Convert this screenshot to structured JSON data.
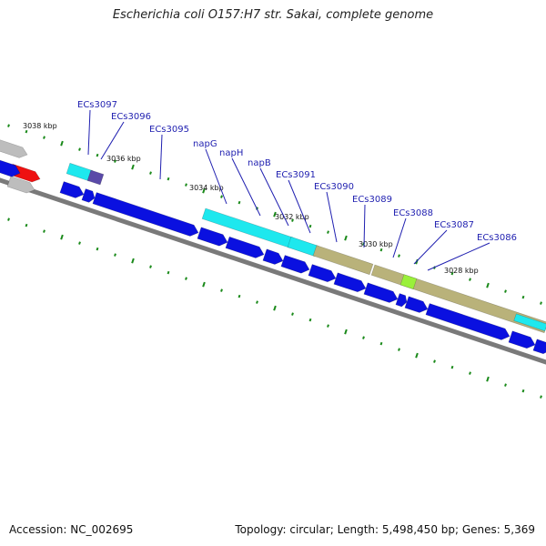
{
  "title": "Escherichia coli O157:H7 str. Sakai, complete genome",
  "footer": {
    "accession": "Accession: NC_002695",
    "summary": "Topology: circular; Length: 5,498,450 bp; Genes: 5,369"
  },
  "colors": {
    "cds": "#0a10e0",
    "highlight": "#1ee8ee",
    "operon": "#b9b27a",
    "rna": "#ee1111",
    "other": "#bdbdbd",
    "backbone": "#7a7a7a",
    "tick": "#1a8a1a",
    "label": "#1f1fb0"
  },
  "tick_labels": [
    {
      "text": "3038 kbp"
    },
    {
      "text": "3036 kbp"
    },
    {
      "text": "3034 kbp"
    },
    {
      "text": "3032 kbp"
    },
    {
      "text": "3030 kbp"
    },
    {
      "text": "3028 kbp"
    }
  ],
  "gene_labels": [
    {
      "text": "ECs3097"
    },
    {
      "text": "ECs3096"
    },
    {
      "text": "ECs3095"
    },
    {
      "text": "napG"
    },
    {
      "text": "napH"
    },
    {
      "text": "napB"
    },
    {
      "text": "ECs3091"
    },
    {
      "text": "ECs3090"
    },
    {
      "text": "ECs3089"
    },
    {
      "text": "ECs3088"
    },
    {
      "text": "ECs3087"
    },
    {
      "text": "ECs3086"
    }
  ]
}
